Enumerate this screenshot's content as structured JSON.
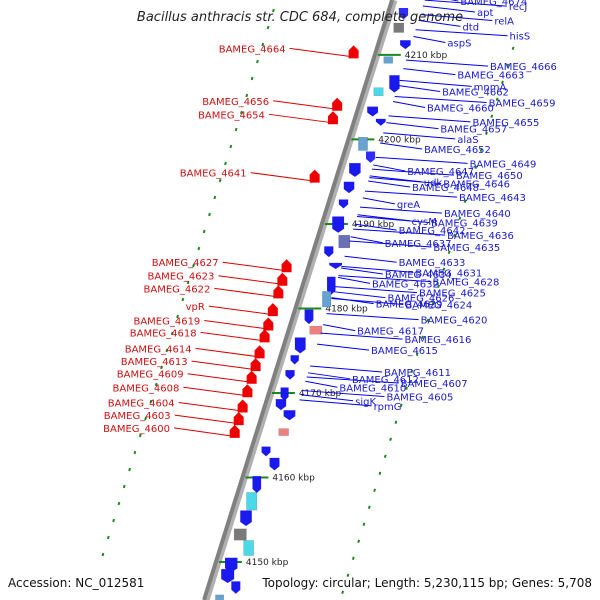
{
  "title": "Bacillus anthracis str. CDC 684, complete genome",
  "footer": {
    "accession": "Accession: NC_012581",
    "topology": "Topology: circular; Length: 5,230,115 bp; Genes: 5,708"
  },
  "colors": {
    "forward": "#0000ee",
    "reverse": "#dd0000",
    "backbone": "#808080",
    "tick": "#1a8a1a",
    "label_forward": "#1a1acc",
    "label_reverse": "#cc1111"
  },
  "scale": {
    "bp_at_top": 4216500,
    "bp_at_bottom": 4145500,
    "ticks": [
      {
        "bp": 4210000,
        "label": "4210 kbp"
      },
      {
        "bp": 4200000,
        "label": "4200 kbp"
      },
      {
        "bp": 4190000,
        "label": "4190 kbp"
      },
      {
        "bp": 4180000,
        "label": "4180 kbp"
      },
      {
        "bp": 4170000,
        "label": "4170 kbp"
      },
      {
        "bp": 4160000,
        "label": "4160 kbp"
      },
      {
        "bp": 4150000,
        "label": "4150 kbp"
      }
    ]
  },
  "labels_forward": [
    {
      "text": "BAMEG_4674",
      "bp": 4215900
    },
    {
      "text": "recJ",
      "bp": 4215300
    },
    {
      "text": "apt",
      "bp": 4214600
    },
    {
      "text": "relA",
      "bp": 4213600
    },
    {
      "text": "dtd",
      "bp": 4212900
    },
    {
      "text": "hisS",
      "bp": 4211800
    },
    {
      "text": "aspS",
      "bp": 4211000
    },
    {
      "text": "BAMEG_4666",
      "bp": 4208200
    },
    {
      "text": "BAMEG_4663",
      "bp": 4207200
    },
    {
      "text": "mnmA",
      "bp": 4205800
    },
    {
      "text": "BAMEG_4662",
      "bp": 4205200
    },
    {
      "text": "BAMEG_4659",
      "bp": 4203900
    },
    {
      "text": "BAMEG_4660",
      "bp": 4203300
    },
    {
      "text": "BAMEG_4655",
      "bp": 4201600
    },
    {
      "text": "BAMEG_4657",
      "bp": 4200800
    },
    {
      "text": "alaS",
      "bp": 4199600
    },
    {
      "text": "BAMEG_4652",
      "bp": 4198400
    },
    {
      "text": "BAMEG_4649",
      "bp": 4196700
    },
    {
      "text": "BAMEG_4647",
      "bp": 4195800
    },
    {
      "text": "BAMEG_4650",
      "bp": 4195300
    },
    {
      "text": "udk",
      "bp": 4194500
    },
    {
      "text": "BAMEG_4646",
      "bp": 4194300
    },
    {
      "text": "BAMEG_4648",
      "bp": 4193900
    },
    {
      "text": "BAMEG_4643",
      "bp": 4192700
    },
    {
      "text": "greA",
      "bp": 4191900
    },
    {
      "text": "BAMEG_4640",
      "bp": 4190800
    },
    {
      "text": "cysM",
      "bp": 4189900
    },
    {
      "text": "BAMEG_4639",
      "bp": 4189700
    },
    {
      "text": "BAMEG_4642",
      "bp": 4188800
    },
    {
      "text": "BAMEG_4636",
      "bp": 4188200
    },
    {
      "text": "BAMEG_4637",
      "bp": 4187300
    },
    {
      "text": "BAMEG_4635",
      "bp": 4186800
    },
    {
      "text": "BAMEG_4633",
      "bp": 4185000
    },
    {
      "text": "BAMEG_4631",
      "bp": 4183800
    },
    {
      "text": "BAMEG_4634",
      "bp": 4183600
    },
    {
      "text": "BAMEG_4628",
      "bp": 4182700
    },
    {
      "text": "BAMEG_4632",
      "bp": 4182500
    },
    {
      "text": "BAMEG_4625",
      "bp": 4181400
    },
    {
      "text": "BAMEG_4626",
      "bp": 4180800
    },
    {
      "text": "BAMEG_4624",
      "bp": 4180000
    },
    {
      "text": "BAMEG_4629",
      "bp": 4180100
    },
    {
      "text": "BAMEG_4620",
      "bp": 4178200
    },
    {
      "text": "BAMEG_4617",
      "bp": 4176900
    },
    {
      "text": "BAMEG_4616",
      "bp": 4175900
    },
    {
      "text": "BAMEG_4615",
      "bp": 4174600
    },
    {
      "text": "BAMEG_4611",
      "bp": 4172000
    },
    {
      "text": "BAMEG_4612",
      "bp": 4171200
    },
    {
      "text": "BAMEG_4607",
      "bp": 4170700
    },
    {
      "text": "BAMEG_4610",
      "bp": 4170200
    },
    {
      "text": "BAMEG_4605",
      "bp": 4169100
    },
    {
      "text": "sigK",
      "bp": 4168600
    },
    {
      "text": "rpmG",
      "bp": 4168000
    }
  ],
  "labels_reverse": [
    {
      "text": "BAMEG_4664",
      "bp": 4210300
    },
    {
      "text": "BAMEG_4656",
      "bp": 4204100
    },
    {
      "text": "BAMEG_4654",
      "bp": 4202500
    },
    {
      "text": "BAMEG_4641",
      "bp": 4195600
    },
    {
      "text": "BAMEG_4627",
      "bp": 4185000
    },
    {
      "text": "BAMEG_4623",
      "bp": 4183400
    },
    {
      "text": "BAMEG_4622",
      "bp": 4181900
    },
    {
      "text": "vpR",
      "bp": 4179800
    },
    {
      "text": "BAMEG_4619",
      "bp": 4178100
    },
    {
      "text": "BAMEG_4618",
      "bp": 4176700
    },
    {
      "text": "BAMEG_4614",
      "bp": 4174800
    },
    {
      "text": "BAMEG_4613",
      "bp": 4173300
    },
    {
      "text": "BAMEG_4609",
      "bp": 4171800
    },
    {
      "text": "BAMEG_4608",
      "bp": 4170200
    },
    {
      "text": "BAMEG_4604",
      "bp": 4168400
    },
    {
      "text": "BAMEG_4603",
      "bp": 4166900
    },
    {
      "text": "BAMEG_4600",
      "bp": 4165400
    }
  ]
}
